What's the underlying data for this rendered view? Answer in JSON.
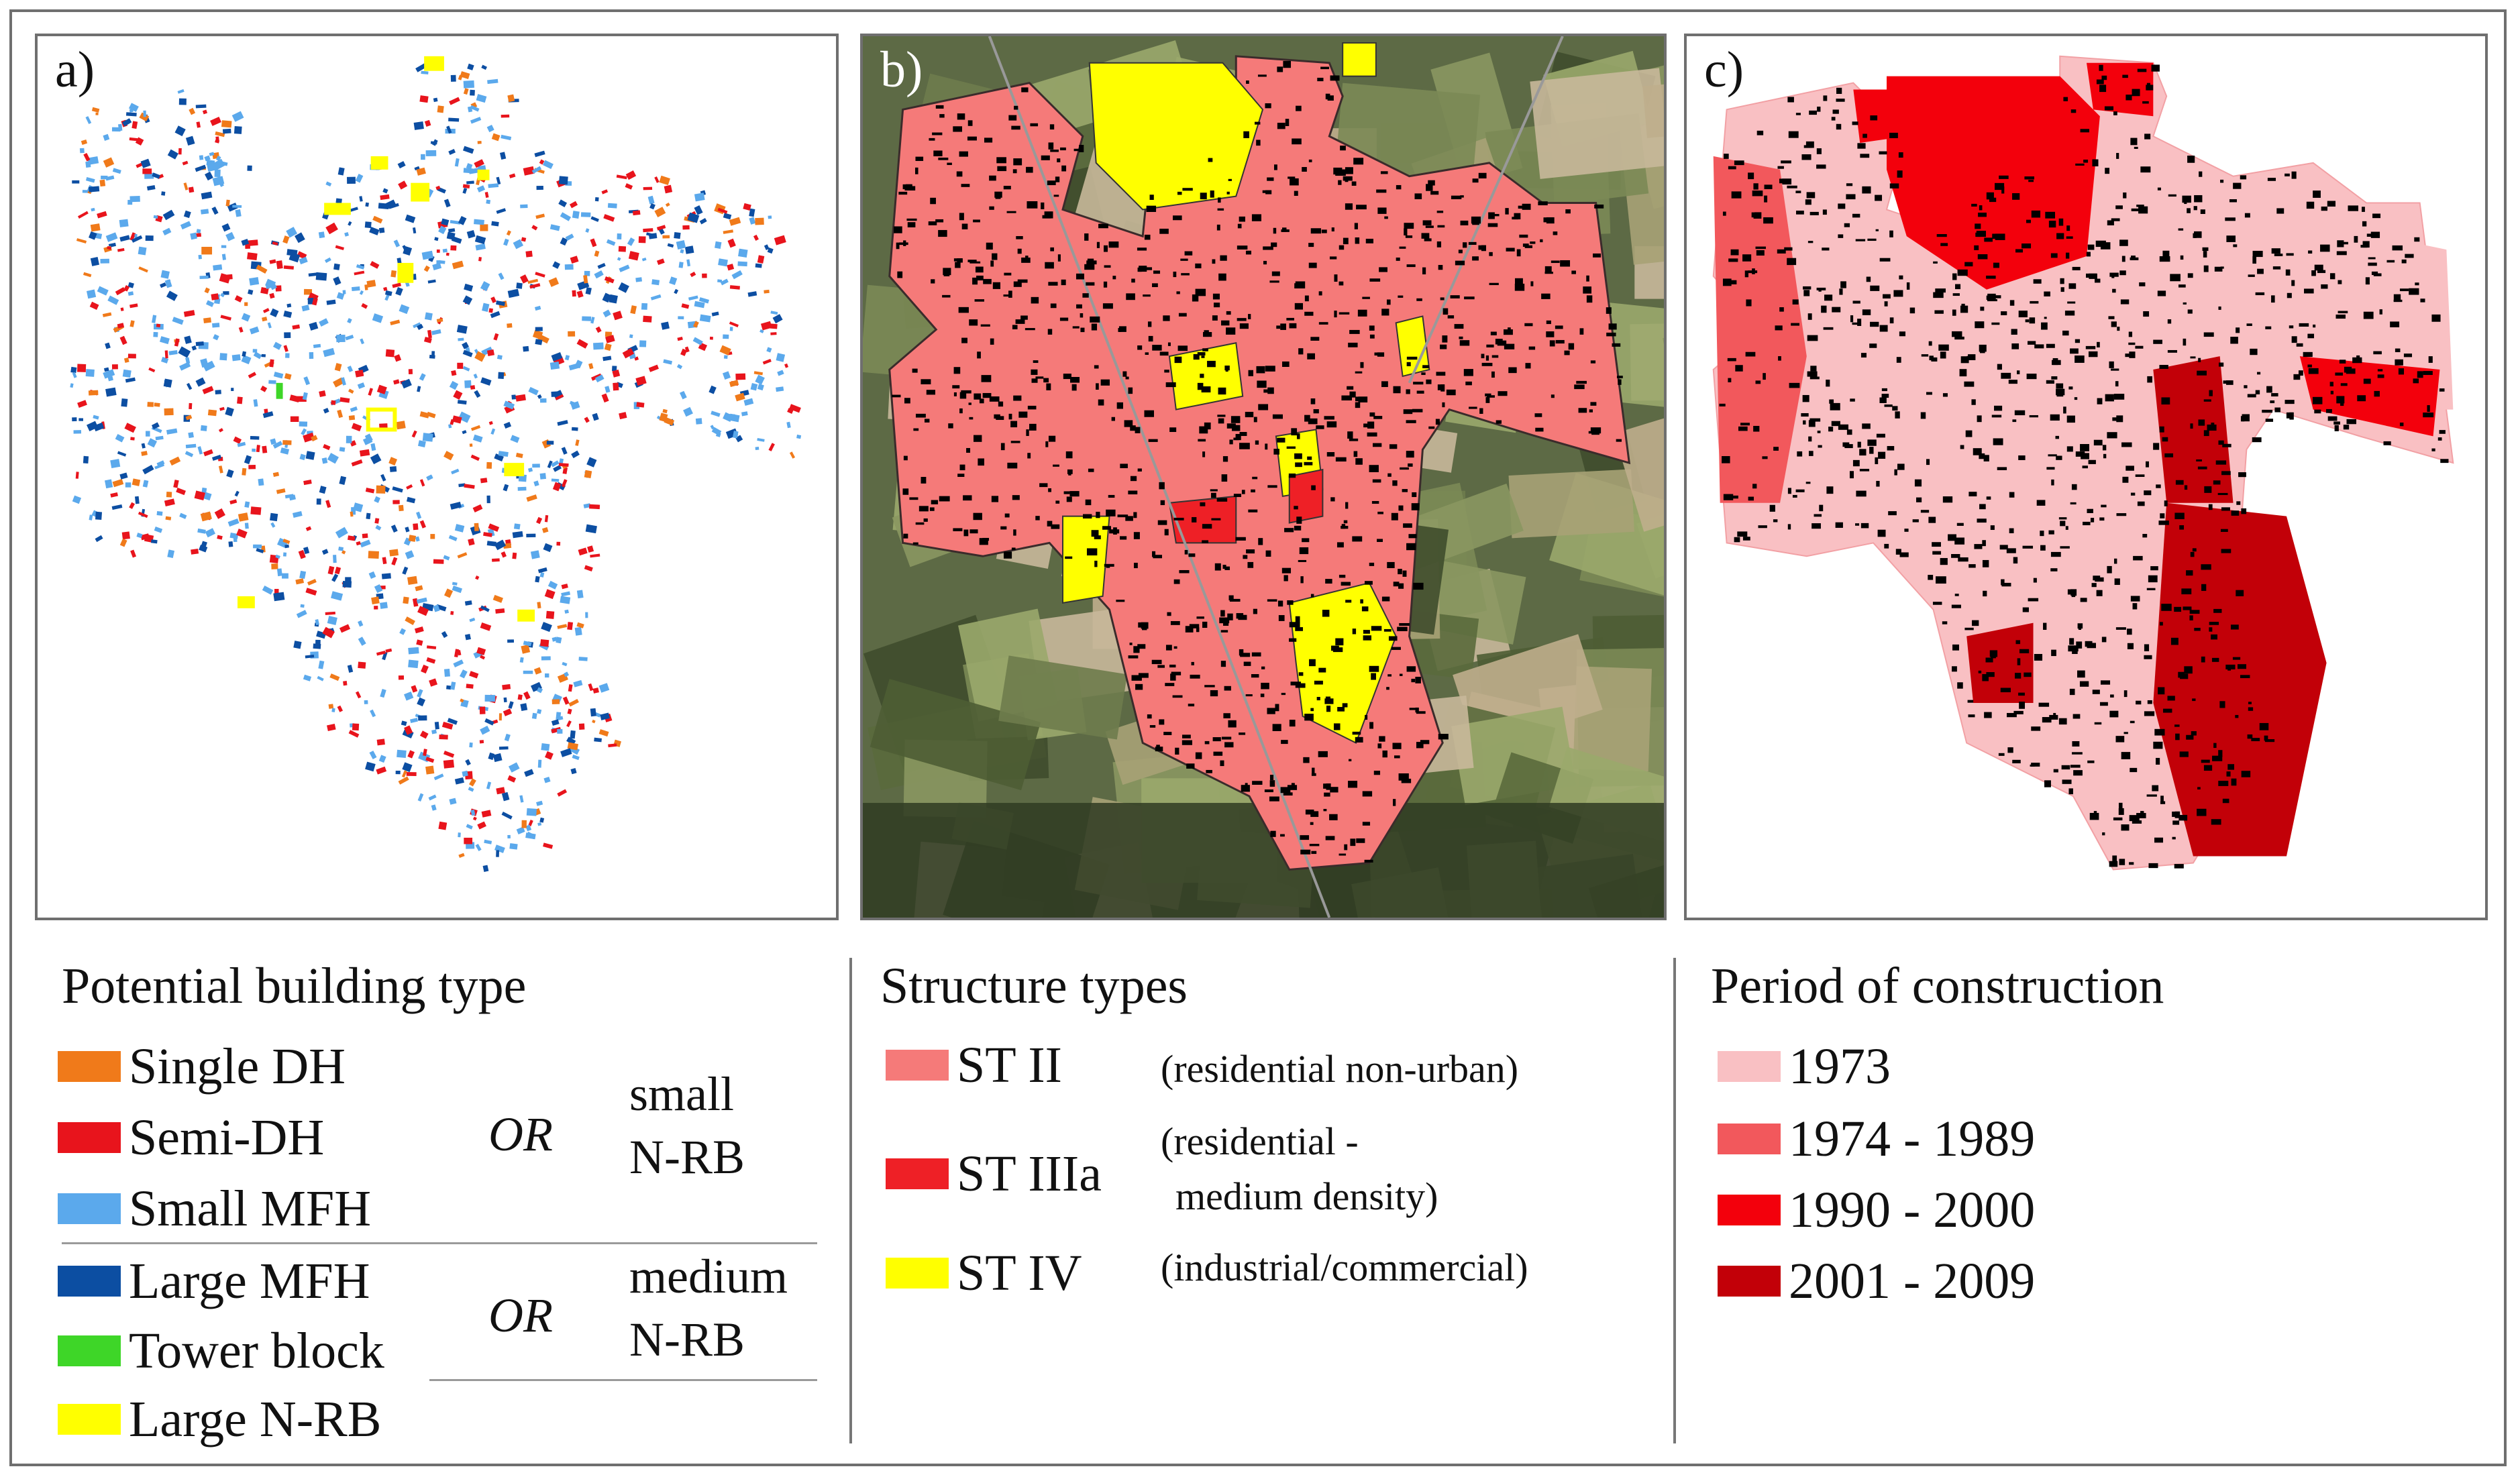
{
  "panels": {
    "a": {
      "label": "a)"
    },
    "b": {
      "label": "b)"
    },
    "c": {
      "label": "c)"
    }
  },
  "legend_building": {
    "title": "Potential building type",
    "items": [
      {
        "label": "Single DH",
        "color": "#f07a1a"
      },
      {
        "label": "Semi-DH",
        "color": "#e8141c"
      },
      {
        "label": "Small MFH",
        "color": "#5ba9ec"
      },
      {
        "label": "Large MFH",
        "color": "#0c4ea2"
      },
      {
        "label": "Tower block",
        "color": "#3ed628"
      },
      {
        "label": "Large N-RB",
        "color": "#ffff00"
      }
    ],
    "group1": {
      "or": "OR",
      "line1": "small",
      "line2": "N-RB"
    },
    "group2": {
      "or": "OR",
      "line1": "medium",
      "line2": "N-RB"
    }
  },
  "legend_structure": {
    "title": "Structure types",
    "items": [
      {
        "label": "ST II",
        "desc": "(residential non-urban)",
        "color": "#f57a79"
      },
      {
        "label": "ST IIIa",
        "desc_line1": "(residential -",
        "desc_line2": "medium density)",
        "color": "#ee2026"
      },
      {
        "label": "ST IV",
        "desc": "(industrial/commercial)",
        "color": "#ffff00"
      }
    ]
  },
  "legend_period": {
    "title": "Period of construction",
    "items": [
      {
        "label": "1973",
        "color": "#f9c0c3"
      },
      {
        "label": "1974 - 1989",
        "color": "#f2585c"
      },
      {
        "label": "1990 - 2000",
        "color": "#f3000c"
      },
      {
        "label": "2001 - 2009",
        "color": "#c20008"
      }
    ]
  }
}
